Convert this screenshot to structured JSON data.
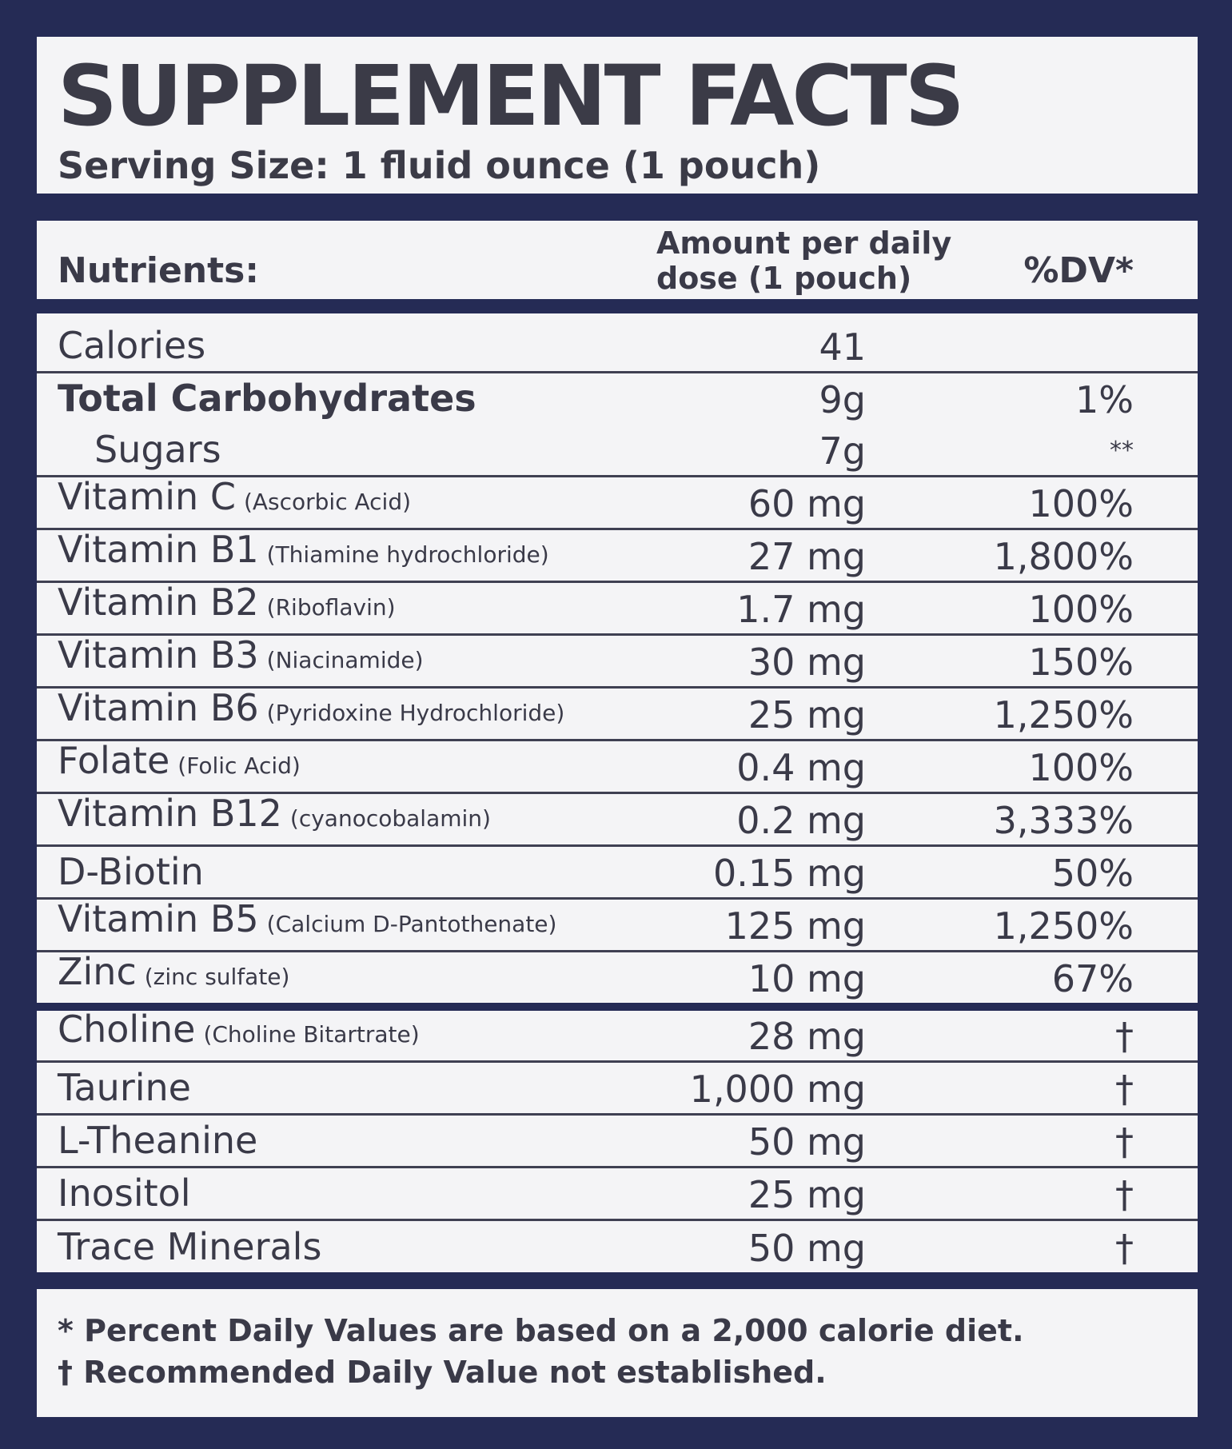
{
  "title": "SUPPLEMENT FACTS",
  "serving_size": "Serving Size: 1 fluid ounce (1 pouch)",
  "header": {
    "nutrients": "Nutrients:",
    "amount_line1": "Amount per daily",
    "amount_line2": "dose (1 pouch)",
    "dv": "%DV*"
  },
  "rows": [
    {
      "name": "Calories",
      "paren": "",
      "amount": "41",
      "dv": ""
    },
    {
      "name": "Total Carbohydrates",
      "paren": "",
      "amount": "9g",
      "dv": "1%"
    },
    {
      "name": "Sugars",
      "paren": "",
      "amount": "7g",
      "dv": "**"
    },
    {
      "name": "Vitamin C",
      "paren": "(Ascorbic Acid)",
      "amount": "60 mg",
      "dv": "100%"
    },
    {
      "name": "Vitamin B1",
      "paren": "(Thiamine hydrochloride)",
      "amount": "27 mg",
      "dv": "1,800%"
    },
    {
      "name": "Vitamin B2",
      "paren": "(Riboflavin)",
      "amount": "1.7 mg",
      "dv": "100%"
    },
    {
      "name": "Vitamin B3",
      "paren": "(Niacinamide)",
      "amount": "30 mg",
      "dv": "150%"
    },
    {
      "name": "Vitamin B6",
      "paren": "(Pyridoxine Hydrochloride)",
      "amount": "25 mg",
      "dv": "1,250%"
    },
    {
      "name": "Folate",
      "paren": "(Folic Acid)",
      "amount": "0.4 mg",
      "dv": "100%"
    },
    {
      "name": "Vitamin B12",
      "paren": "(cyanocobalamin)",
      "amount": "0.2 mg",
      "dv": "3,333%"
    },
    {
      "name": "D-Biotin",
      "paren": "",
      "amount": "0.15 mg",
      "dv": "50%"
    },
    {
      "name": "Vitamin B5",
      "paren": "(Calcium D-Pantothenate)",
      "amount": "125 mg",
      "dv": "1,250%"
    },
    {
      "name": "Zinc",
      "paren": "(zinc sulfate)",
      "amount": "10 mg",
      "dv": "67%"
    },
    {
      "name": "Choline",
      "paren": "(Choline Bitartrate)",
      "amount": "28 mg",
      "dv": "†"
    },
    {
      "name": "Taurine",
      "paren": "",
      "amount": "1,000 mg",
      "dv": "†"
    },
    {
      "name": "L-Theanine",
      "paren": "",
      "amount": "50 mg",
      "dv": "†"
    },
    {
      "name": "Inositol",
      "paren": "",
      "amount": "25 mg",
      "dv": "†"
    },
    {
      "name": "Trace Minerals",
      "paren": "",
      "amount": "50 mg",
      "dv": "†"
    }
  ],
  "footnotes": [
    "*  Percent Daily Values are based on a 2,000 calorie diet.",
    "†  Recommended Daily Value not established."
  ]
}
